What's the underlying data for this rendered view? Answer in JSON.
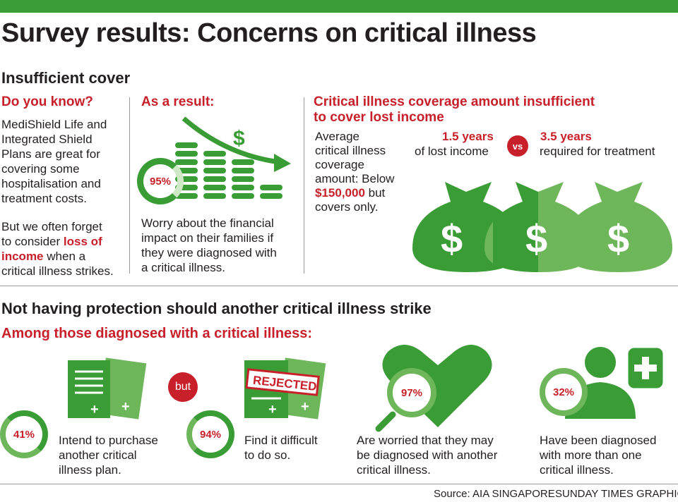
{
  "title": "Survey results: Concerns on critical illness",
  "section1": {
    "heading": "Insufficient cover",
    "col1": {
      "heading": "Do you know?",
      "para1": [
        "MediShield Life and",
        "Integrated Shield",
        "Plans are great for",
        "covering some",
        "hospitalisation and",
        "treatment costs."
      ],
      "para2_line1": "But we often forget",
      "para2_line2_pre": "to consider ",
      "para2_line2_red": "loss of",
      "para2_line3_red": "income",
      "para2_line3_post": " when a",
      "para2_line4": "critical illness strikes."
    },
    "col2": {
      "heading": "As a result:",
      "percent": "95%",
      "dollar_sign": "$",
      "text": [
        "Worry about the financial",
        "impact on their families if",
        "they were diagnosed with",
        "a critical illness."
      ]
    },
    "col3": {
      "heading_line1": "Critical illness coverage amount insufficient",
      "heading_line2": "to cover lost income",
      "avg_lines": [
        "Average",
        "critical illness",
        "coverage",
        "amount: Below"
      ],
      "amount": "$150,000",
      "amount_post": " but",
      "avg_last": "covers only.",
      "lost_years": "1.5 years",
      "lost_label": "of lost income",
      "vs": "vs",
      "required_years": "3.5 years",
      "required_label": "required for treatment",
      "bag_symbol": "$"
    }
  },
  "section2": {
    "heading": "Not having protection should another critical illness strike",
    "subheading": "Among those diagnosed with a critical illness:",
    "but_label": "but",
    "rejected_label": "REJECTED",
    "stats": [
      {
        "percent": "41%",
        "lines": [
          "Intend to purchase",
          "another critical",
          "illness plan."
        ]
      },
      {
        "percent": "94%",
        "lines": [
          "Find it difficult",
          "to do so."
        ]
      },
      {
        "percent": "97%",
        "lines": [
          "Are worried that they may",
          "be diagnosed with another",
          "critical illness."
        ]
      },
      {
        "percent": "32%",
        "lines": [
          "Have been diagnosed",
          "with more than one",
          "critical illness."
        ]
      }
    ]
  },
  "footer": {
    "source": "Source: AIA SINGAPORE",
    "credit": "SUNDAY TIMES GRAPHICS"
  },
  "colors": {
    "green": "#3a9c35",
    "light_green": "#6db65a",
    "red": "#c8202a"
  },
  "icons": [
    "dollar-icon",
    "coin-stack-icon",
    "trend-arrow-icon",
    "money-bag-icon",
    "document-icon",
    "heart-icon",
    "magnifier-icon",
    "person-icon",
    "medical-cross-icon"
  ]
}
